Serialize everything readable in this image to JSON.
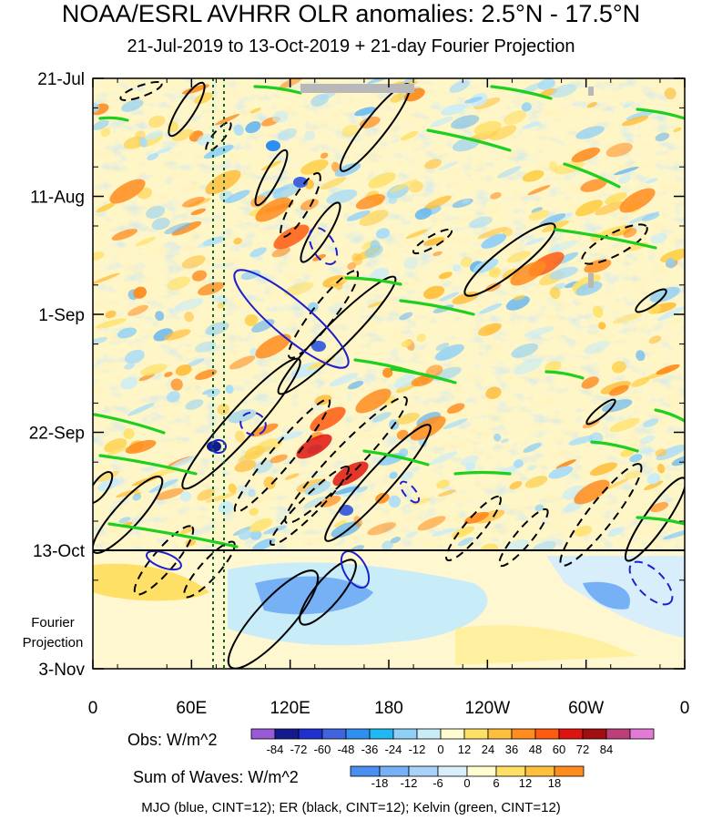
{
  "chart_data": {
    "type": "heatmap",
    "title": "NOAA/ESRL AVHRR OLR anomalies: 2.5°N - 17.5°N",
    "subtitle": "21-Jul-2019 to 13-Oct-2019 + 21-day Fourier Projection",
    "x_ticks": [
      "0",
      "60E",
      "120E",
      "180",
      "120W",
      "60W",
      "0"
    ],
    "y_ticks": [
      "21-Jul",
      "11-Aug",
      "1-Sep",
      "22-Sep",
      "13-Oct",
      "3-Nov"
    ],
    "y_annotation": [
      "Fourier",
      "Projection"
    ],
    "obs_colorbar": {
      "label": "Obs: W/m^2",
      "levels": [
        "-84",
        "-72",
        "-60",
        "-48",
        "-36",
        "-24",
        "-12",
        "0",
        "12",
        "24",
        "36",
        "48",
        "60",
        "72",
        "84"
      ],
      "colors": [
        "#9a5ad8",
        "#121a8c",
        "#1f2fd0",
        "#3f64de",
        "#2e8ff0",
        "#1fb8f2",
        "#8fd0f6",
        "#c8ecf8",
        "#fffcd0",
        "#ffe066",
        "#ffbe3c",
        "#ff8c1e",
        "#ff5a0f",
        "#e0140f",
        "#a00e0e",
        "#bd3f7a",
        "#e37ad6"
      ]
    },
    "waves_colorbar": {
      "label": "Sum of Waves: W/m^2",
      "levels": [
        "-18",
        "-12",
        "-6",
        "0",
        "6",
        "12",
        "18"
      ],
      "colors": [
        "#4a8ef0",
        "#76b0f5",
        "#a8d2f8",
        "#d8eefb",
        "#fffcd0",
        "#ffe066",
        "#ffbe3c",
        "#ff8c1e"
      ]
    },
    "footer": "MJO (blue, CINT=12); ER (black, CINT=12); Kelvin (green, CINT=12)",
    "contour_colors": {
      "mjo": "#1f1fd0",
      "er": "#000000",
      "kelvin": "#1ed01e",
      "marker": "#0a6a2a"
    }
  }
}
